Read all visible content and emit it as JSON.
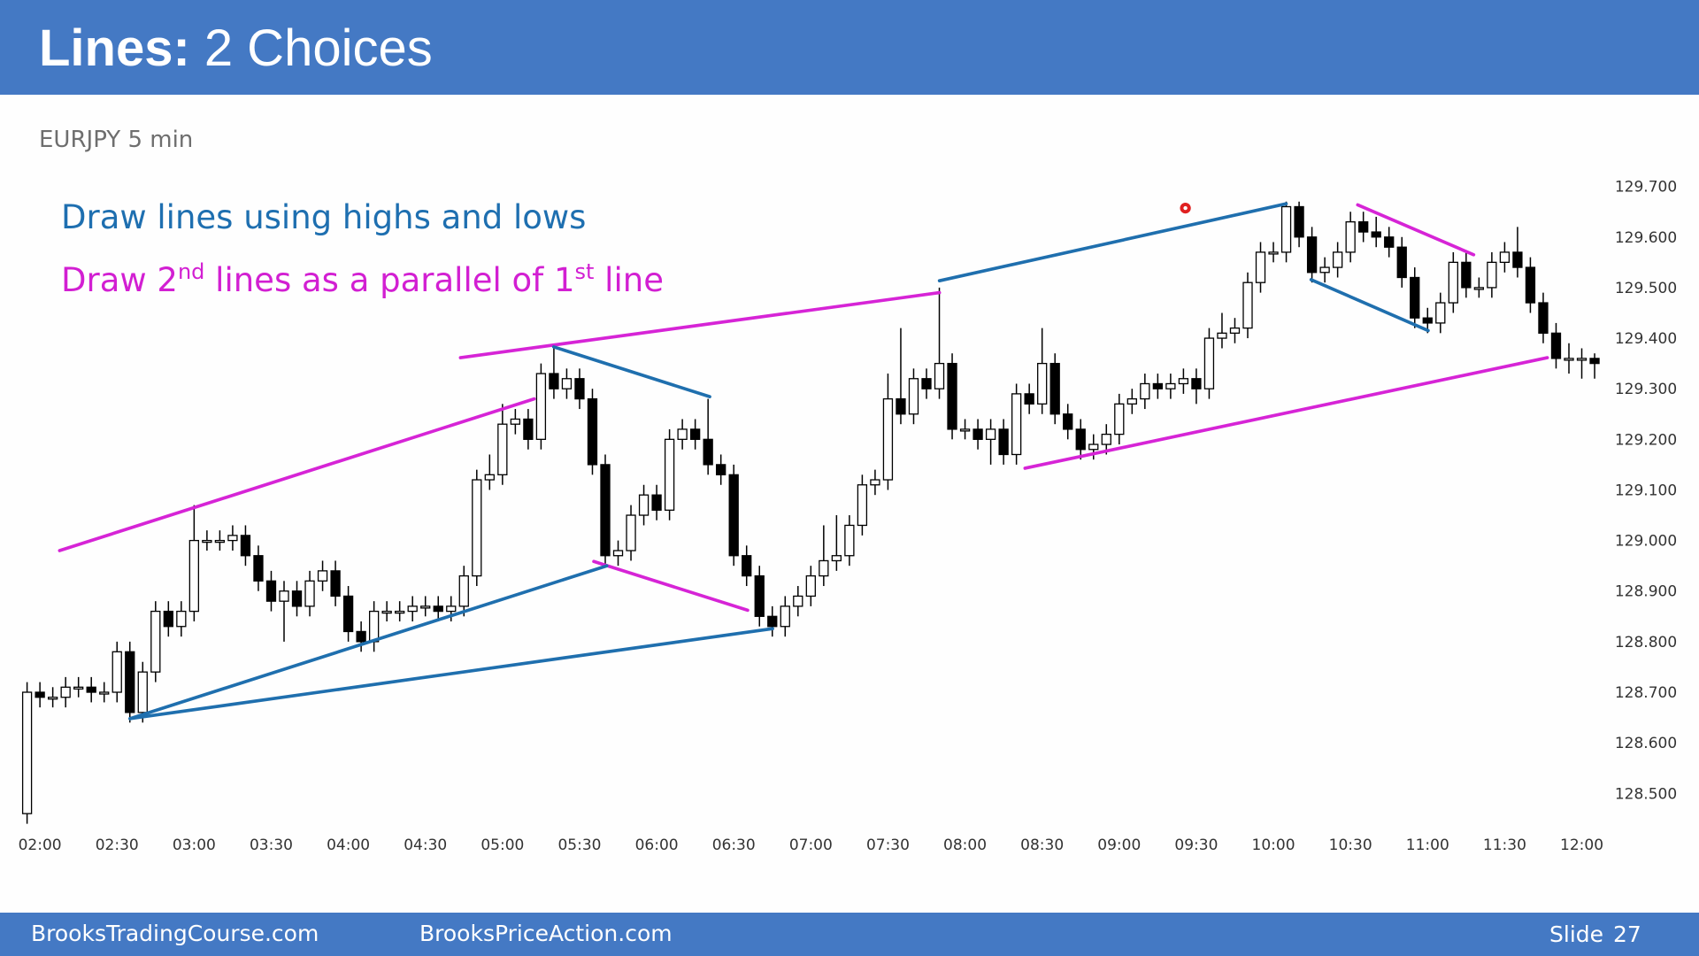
{
  "header": {
    "title_bold": "Lines:",
    "title_rest": "2 Choices"
  },
  "notes": {
    "first": "Draw lines using highs and lows",
    "second": [
      "Draw 2",
      "nd",
      " lines as a parallel of 1",
      "st",
      " line"
    ]
  },
  "footer": {
    "left": "BrooksTradingCourse.com",
    "center": "BrooksPriceAction.com",
    "slide_label": "Slide",
    "slide_number": "27"
  },
  "chart_data": {
    "type": "candlestick",
    "subtitle": "EURJPY 5 min",
    "open": [
      128.46,
      128.7,
      128.69,
      128.69,
      128.71,
      128.71,
      128.7,
      128.7,
      128.78,
      128.66,
      128.74,
      128.86,
      128.83,
      128.86,
      129.0,
      129.0,
      129.0,
      129.01,
      128.97,
      128.92,
      128.88,
      128.9,
      128.87,
      128.92,
      128.94,
      128.89,
      128.82,
      128.8,
      128.86,
      128.86,
      128.86,
      128.87,
      128.87,
      128.86,
      128.87,
      128.93,
      129.12,
      129.13,
      129.23,
      129.24,
      129.2,
      129.33,
      129.3,
      129.32,
      129.28,
      129.15,
      128.97,
      128.98,
      129.05,
      129.09,
      129.06,
      129.2,
      129.22,
      129.2,
      129.15,
      129.13,
      128.97,
      128.93,
      128.85,
      128.83,
      128.87,
      128.89,
      128.93,
      128.96,
      128.97,
      129.03,
      129.11,
      129.12,
      129.28,
      129.25,
      129.32,
      129.3,
      129.35,
      129.22,
      129.22,
      129.2,
      129.22,
      129.17,
      129.29,
      129.27,
      129.35,
      129.25,
      129.22,
      129.18,
      129.19,
      129.21,
      129.27,
      129.28,
      129.31,
      129.3,
      129.31,
      129.32,
      129.3,
      129.4,
      129.41,
      129.42,
      129.51,
      129.57,
      129.57,
      129.66,
      129.6,
      129.53,
      129.54,
      129.57,
      129.63,
      129.61,
      129.6,
      129.58,
      129.52,
      129.44,
      129.43,
      129.47,
      129.55,
      129.5,
      129.5,
      129.55,
      129.57,
      129.54,
      129.47,
      129.41,
      129.36,
      129.36,
      129.36
    ],
    "high": [
      128.72,
      128.72,
      128.71,
      128.73,
      128.73,
      128.73,
      128.72,
      128.8,
      128.8,
      128.76,
      128.88,
      128.88,
      128.88,
      129.07,
      129.02,
      129.02,
      129.03,
      129.03,
      128.99,
      128.94,
      128.92,
      128.92,
      128.94,
      128.96,
      128.96,
      128.91,
      128.84,
      128.88,
      128.88,
      128.88,
      128.89,
      128.89,
      128.89,
      128.89,
      128.95,
      129.14,
      129.17,
      129.27,
      129.26,
      129.26,
      129.35,
      129.38,
      129.34,
      129.34,
      129.3,
      129.17,
      129.0,
      129.07,
      129.11,
      129.11,
      129.22,
      129.24,
      129.24,
      129.28,
      129.17,
      129.15,
      128.99,
      128.95,
      128.87,
      128.89,
      128.91,
      128.95,
      129.03,
      129.05,
      129.05,
      129.13,
      129.14,
      129.33,
      129.42,
      129.34,
      129.34,
      129.5,
      129.37,
      129.24,
      129.24,
      129.24,
      129.24,
      129.31,
      129.31,
      129.42,
      129.37,
      129.27,
      129.24,
      129.21,
      129.23,
      129.29,
      129.3,
      129.33,
      129.33,
      129.33,
      129.34,
      129.34,
      129.42,
      129.45,
      129.44,
      129.53,
      129.59,
      129.59,
      129.67,
      129.67,
      129.62,
      129.56,
      129.59,
      129.65,
      129.65,
      129.64,
      129.62,
      129.6,
      129.54,
      129.46,
      129.49,
      129.57,
      129.57,
      129.52,
      129.57,
      129.59,
      129.62,
      129.56,
      129.49,
      129.43,
      129.39,
      129.38,
      129.37
    ],
    "low": [
      128.44,
      128.67,
      128.67,
      128.67,
      128.69,
      128.68,
      128.68,
      128.68,
      128.64,
      128.64,
      128.72,
      128.81,
      128.81,
      128.84,
      128.98,
      128.98,
      128.98,
      128.95,
      128.9,
      128.86,
      128.8,
      128.85,
      128.85,
      128.9,
      128.87,
      128.8,
      128.78,
      128.78,
      128.84,
      128.84,
      128.84,
      128.85,
      128.84,
      128.84,
      128.85,
      128.91,
      129.1,
      129.11,
      129.21,
      129.18,
      129.18,
      129.28,
      129.28,
      129.26,
      129.13,
      128.95,
      128.95,
      128.96,
      129.03,
      129.04,
      129.04,
      129.18,
      129.18,
      129.13,
      129.11,
      128.95,
      128.91,
      128.83,
      128.81,
      128.81,
      128.85,
      128.87,
      128.91,
      128.94,
      128.95,
      129.01,
      129.09,
      129.1,
      129.23,
      129.23,
      129.28,
      129.28,
      129.2,
      129.2,
      129.18,
      129.15,
      129.15,
      129.15,
      129.25,
      129.25,
      129.23,
      129.2,
      129.16,
      129.16,
      129.17,
      129.19,
      129.25,
      129.26,
      129.28,
      129.28,
      129.29,
      129.27,
      129.28,
      129.38,
      129.39,
      129.4,
      129.49,
      129.55,
      129.55,
      129.58,
      129.51,
      129.51,
      129.52,
      129.55,
      129.59,
      129.58,
      129.56,
      129.5,
      129.42,
      129.41,
      129.41,
      129.45,
      129.48,
      129.48,
      129.48,
      129.53,
      129.52,
      129.45,
      129.39,
      129.34,
      129.33,
      129.32,
      129.32
    ],
    "close": [
      128.7,
      128.69,
      128.69,
      128.71,
      128.71,
      128.7,
      128.7,
      128.78,
      128.66,
      128.74,
      128.86,
      128.83,
      128.86,
      129.0,
      129.0,
      129.0,
      129.01,
      128.97,
      128.92,
      128.88,
      128.9,
      128.87,
      128.92,
      128.94,
      128.89,
      128.82,
      128.8,
      128.86,
      128.86,
      128.86,
      128.87,
      128.87,
      128.86,
      128.87,
      128.93,
      129.12,
      129.13,
      129.23,
      129.24,
      129.2,
      129.33,
      129.3,
      129.32,
      129.28,
      129.15,
      128.97,
      128.98,
      129.05,
      129.09,
      129.06,
      129.2,
      129.22,
      129.2,
      129.15,
      129.13,
      128.97,
      128.93,
      128.85,
      128.83,
      128.87,
      128.89,
      128.93,
      128.96,
      128.97,
      129.03,
      129.11,
      129.12,
      129.28,
      129.25,
      129.32,
      129.3,
      129.35,
      129.22,
      129.22,
      129.2,
      129.22,
      129.17,
      129.29,
      129.27,
      129.35,
      129.25,
      129.22,
      129.18,
      129.19,
      129.21,
      129.27,
      129.28,
      129.31,
      129.3,
      129.31,
      129.32,
      129.3,
      129.4,
      129.41,
      129.42,
      129.51,
      129.57,
      129.57,
      129.66,
      129.6,
      129.53,
      129.54,
      129.57,
      129.63,
      129.61,
      129.6,
      129.58,
      129.52,
      129.44,
      129.43,
      129.47,
      129.55,
      129.5,
      129.5,
      129.55,
      129.57,
      129.54,
      129.47,
      129.41,
      129.36,
      129.36,
      129.36,
      129.35
    ],
    "xticks": [
      "02:00",
      "02:30",
      "03:00",
      "03:30",
      "04:00",
      "04:30",
      "05:00",
      "05:30",
      "06:00",
      "06:30",
      "07:00",
      "07:30",
      "08:00",
      "08:30",
      "09:00",
      "09:30",
      "10:00",
      "10:30",
      "11:00",
      "11:30",
      "12:00"
    ],
    "ylim": [
      128.42,
      129.73
    ],
    "yticks": [
      {
        "value": 128.5,
        "label": "128.500"
      },
      {
        "value": 128.6,
        "label": "128.600"
      },
      {
        "value": 128.7,
        "label": "128.700"
      },
      {
        "value": 128.8,
        "label": "128.800"
      },
      {
        "value": 128.9,
        "label": "128.900"
      },
      {
        "value": 129.0,
        "label": "129.000"
      },
      {
        "value": 129.1,
        "label": "129.100"
      },
      {
        "value": 129.2,
        "label": "129.200"
      },
      {
        "value": 129.3,
        "label": "129.300"
      },
      {
        "value": 129.4,
        "label": "129.400"
      },
      {
        "value": 129.5,
        "label": "129.500"
      },
      {
        "value": 129.6,
        "label": "129.600"
      },
      {
        "value": 129.7,
        "label": "129.700"
      }
    ],
    "bull_color": "#ffffff",
    "bear_color": "#000000"
  }
}
